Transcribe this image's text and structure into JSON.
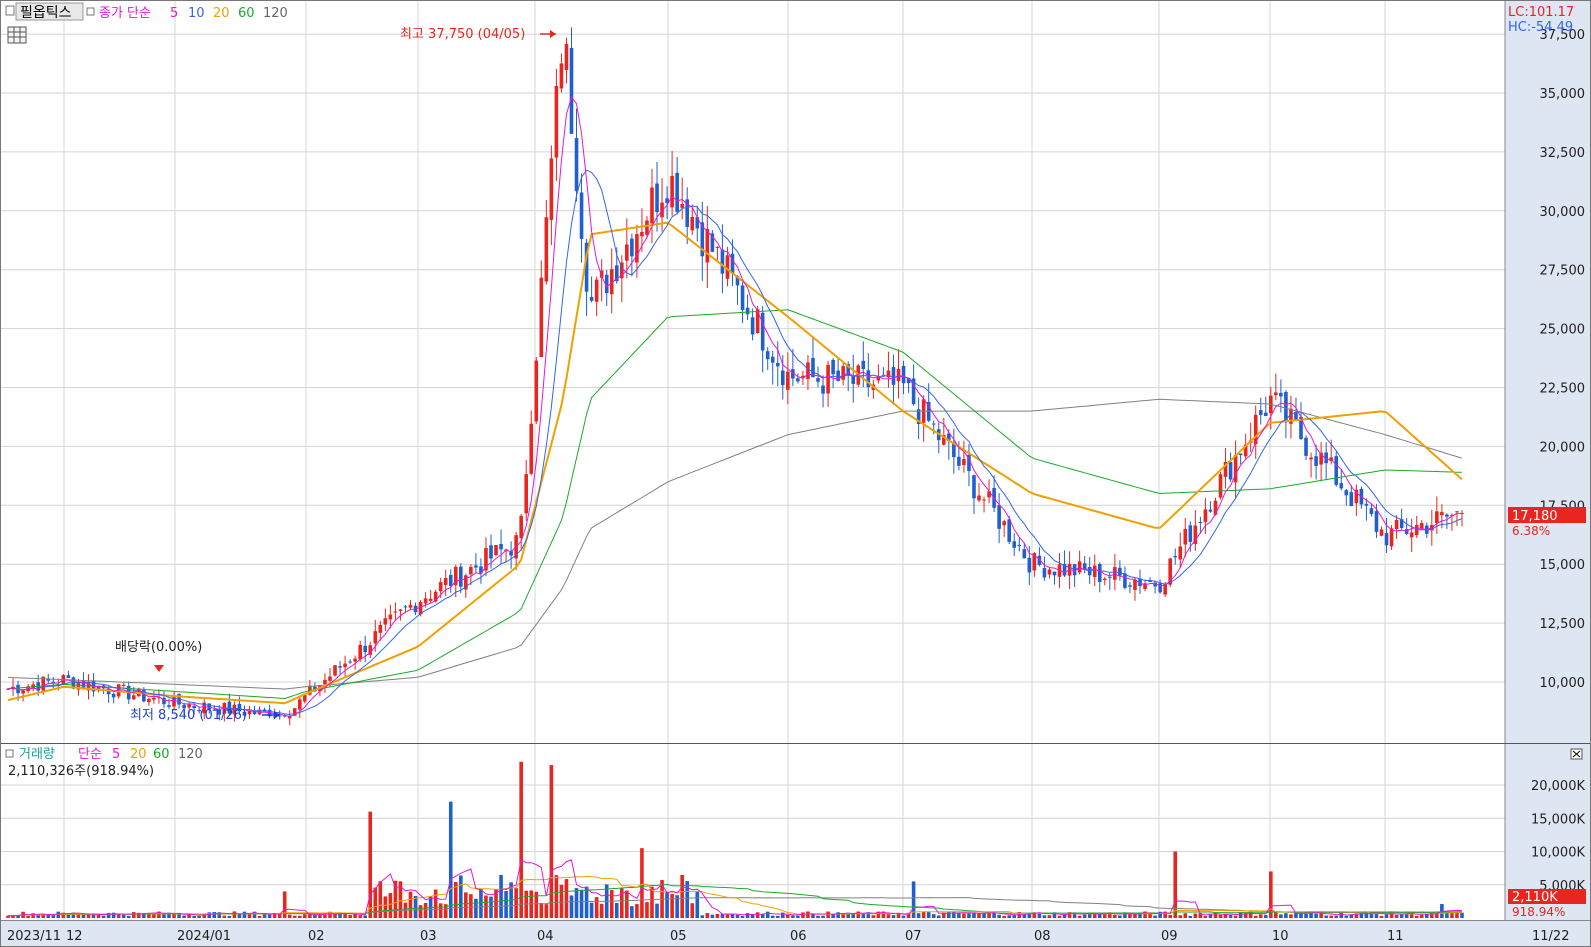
{
  "price_panel": {
    "stock_name": "필옵틱스",
    "ma_label": "종가 단순",
    "ma_periods": [
      "5",
      "10",
      "20",
      "60",
      "120"
    ],
    "lc_label": "LC:101.17",
    "hc_label": "HC:-54.49",
    "current_price": "17,180",
    "change_pct": "6.38%",
    "high_annotation": "최고 37,750 (04/05)",
    "low_annotation": "최저 8,540 (01/26)",
    "dividend_annotation": "배당락(0.00%)"
  },
  "volume_panel": {
    "title": "거래량",
    "ma_label": "단순",
    "ma_periods": [
      "5",
      "20",
      "60",
      "120"
    ],
    "latest_volume": "2,110,326주(918.94%)",
    "current_volume": "2,110K",
    "volume_pct": "918.94%"
  },
  "x_axis": {
    "labels": [
      "2023/11",
      "12",
      "2024/01",
      "02",
      "03",
      "04",
      "05",
      "06",
      "07",
      "08",
      "09",
      "10",
      "11",
      "11/22"
    ]
  },
  "colors": {
    "up": "#e8251e",
    "down": "#1f5fd0",
    "ma5": "#e619d2",
    "ma10": "#3366ee",
    "ma20": "#f0a000",
    "ma60": "#1aaa2a",
    "ma120": "#808080",
    "axis_bg": "#dde6f2"
  },
  "chart_data": [
    {
      "type": "candlestick",
      "title": "필옵틱스",
      "y_ticks": [
        "10,000",
        "12,500",
        "15,000",
        "17,500",
        "20,000",
        "22,500",
        "25,000",
        "27,500",
        "30,000",
        "32,500",
        "35,000",
        "37,500"
      ],
      "ylim": [
        8000,
        38500
      ],
      "closes_approx": [
        {
          "date": "2023/11",
          "close": 9700
        },
        {
          "date": "2023/12",
          "close": 10100
        },
        {
          "date": "2024/01",
          "close": 9100
        },
        {
          "date": "2024/01/26",
          "close": 8540
        },
        {
          "date": "2024/02",
          "close": 9400
        },
        {
          "date": "2024/03",
          "close": 13500
        },
        {
          "date": "2024/03/end",
          "close": 16000
        },
        {
          "date": "2024/04/05",
          "close": 37750
        },
        {
          "date": "2024/04",
          "close": 26000
        },
        {
          "date": "2024/05",
          "close": 31500
        },
        {
          "date": "2024/06",
          "close": 23000
        },
        {
          "date": "2024/07",
          "close": 22500
        },
        {
          "date": "2024/08",
          "close": 15000
        },
        {
          "date": "2024/09",
          "close": 14200
        },
        {
          "date": "2024/10",
          "close": 22000
        },
        {
          "date": "2024/11",
          "close": 16200
        },
        {
          "date": "11/22",
          "close": 17180
        }
      ],
      "ma20_approx": [
        9200,
        9800,
        9400,
        9100,
        9500,
        11500,
        15000,
        22000,
        29000,
        29500,
        25500,
        21500,
        18000,
        16500,
        21000,
        21500,
        18600
      ],
      "ma60_approx": [
        9700,
        9900,
        9600,
        9300,
        9600,
        10500,
        13000,
        17000,
        22000,
        25500,
        25800,
        24000,
        19500,
        18000,
        18200,
        19000,
        18900
      ],
      "ma120_approx": [
        10200,
        10100,
        9900,
        9700,
        9800,
        10200,
        11500,
        14000,
        16500,
        18500,
        20500,
        21500,
        21500,
        22000,
        21800,
        20500,
        19500
      ]
    },
    {
      "type": "bar",
      "title": "거래량",
      "y_ticks": [
        "5,000K",
        "10,000K",
        "15,000K",
        "20,000K"
      ],
      "ylim": [
        0,
        24000
      ],
      "spikes_approx": [
        {
          "date": "2024/02",
          "value": 4000
        },
        {
          "date": "2024/02/end",
          "value": 16000
        },
        {
          "date": "2024/03",
          "value": 17500
        },
        {
          "date": "2024/04",
          "value": 23500
        },
        {
          "date": "2024/04/mid",
          "value": 23000
        },
        {
          "date": "2024/05",
          "value": 10500
        },
        {
          "date": "2024/07",
          "value": 5500
        },
        {
          "date": "2024/09",
          "value": 10000
        },
        {
          "date": "2024/10",
          "value": 7000
        },
        {
          "date": "11/22",
          "value": 2110
        }
      ]
    }
  ]
}
